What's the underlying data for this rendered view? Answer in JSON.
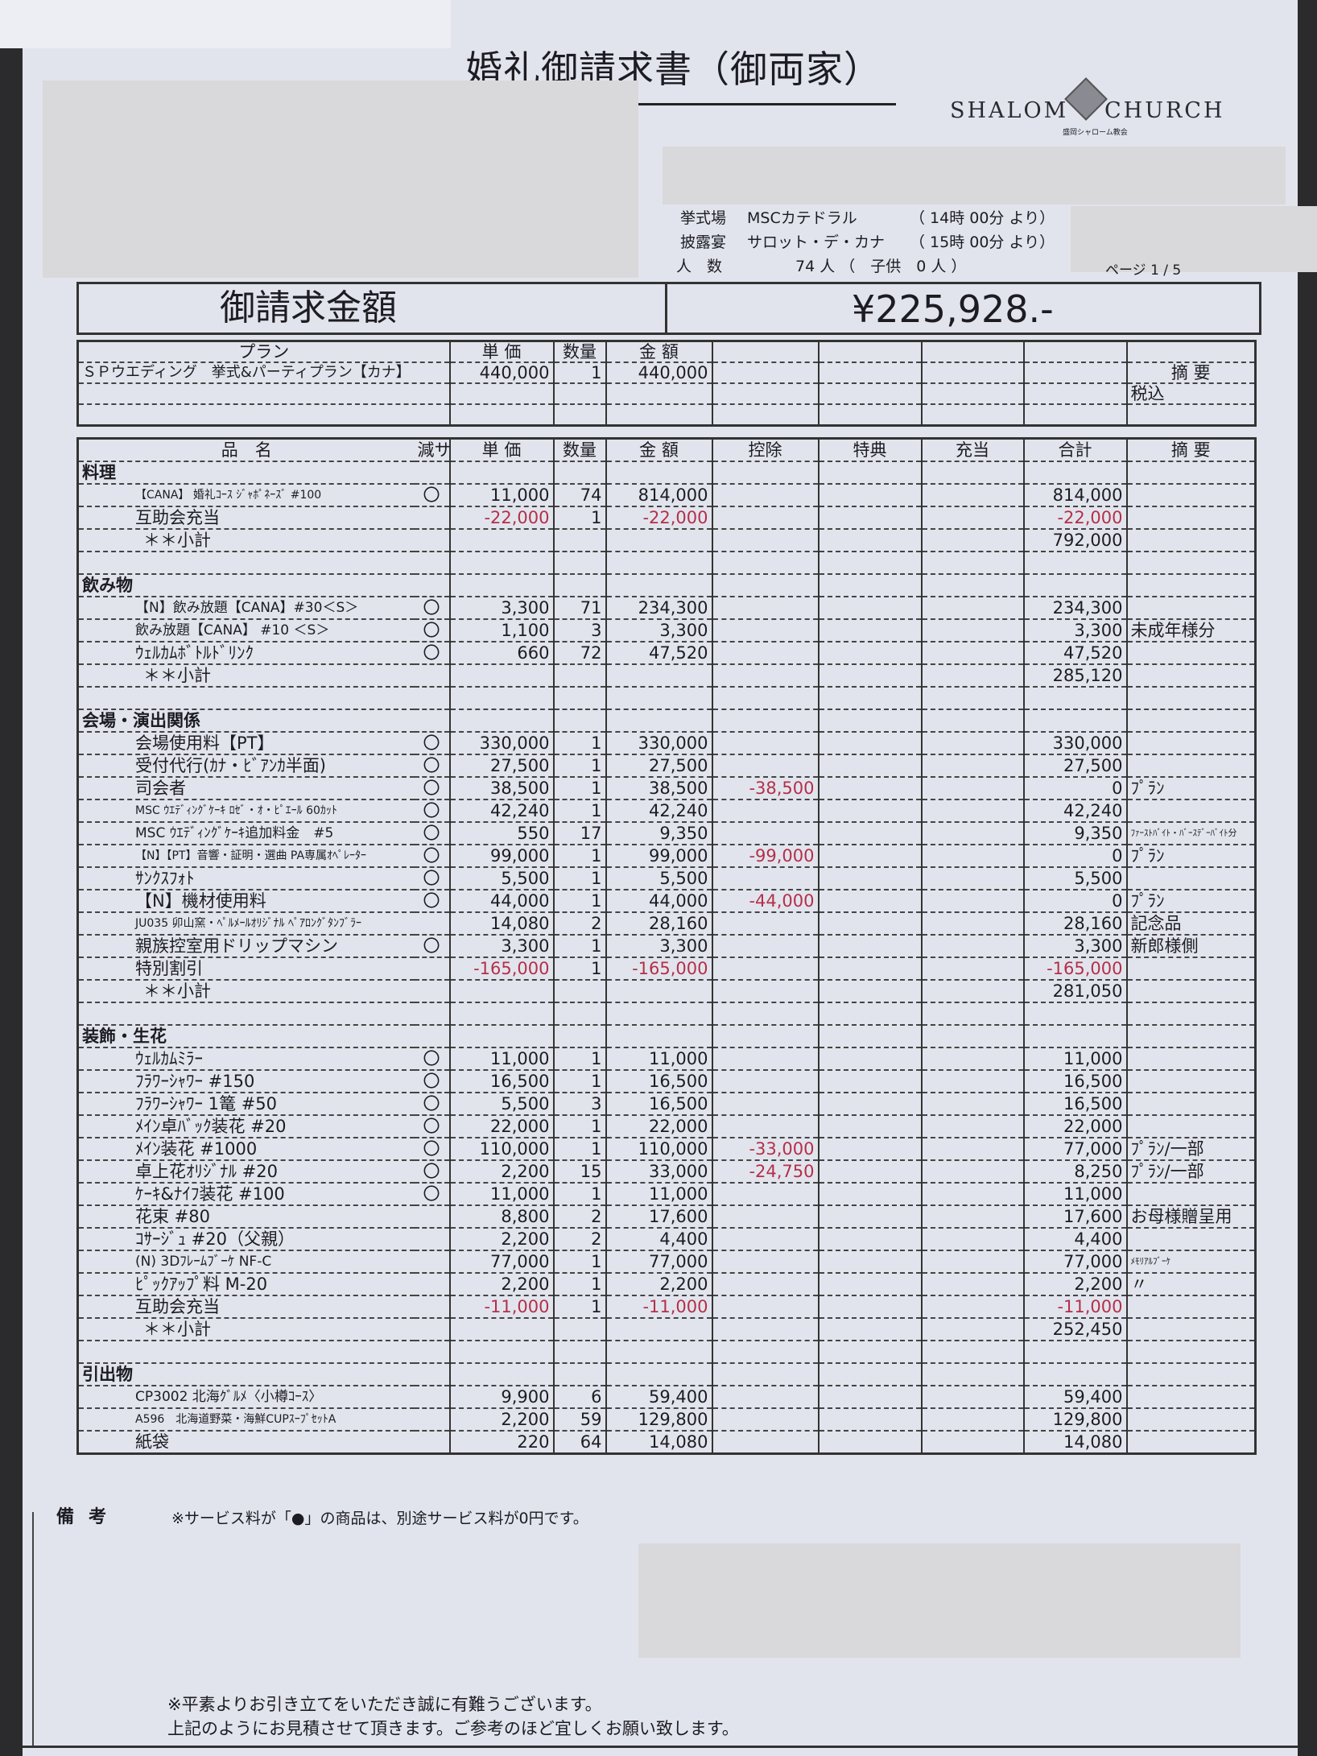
{
  "document": {
    "title": "婚礼御請求書（御両家）",
    "logo_text_left": "SHALOM",
    "logo_text_right": "CHURCH",
    "logo_subtext": "盛岡シャローム教会",
    "logo_monogram": "MS",
    "ceremony_label": "挙式場",
    "ceremony_venue": "MSCカテドラル",
    "ceremony_time": "（ 14時 00分 より）",
    "reception_label": "披露宴",
    "reception_venue": "サロット・デ・カナ",
    "reception_time": "（ 15時 00分 より）",
    "guests_label": "人　数",
    "guests_value": "74 人 （　子供　0 人 ）",
    "page_label": "ページ 1 / 5",
    "amount_label": "御請求金額",
    "amount_value": "¥225,928.-"
  },
  "plan": {
    "headers": {
      "plan": "プラン",
      "price": "単 価",
      "qty": "数量",
      "amount": "金 額",
      "note": "摘 要"
    },
    "name": "ＳＰウエディング　挙式&パーティプラン【カナ】",
    "price": "440,000",
    "qty": "1",
    "amount": "440,000",
    "note": "税込"
  },
  "table": {
    "headers": {
      "name": "品　名",
      "mark": "減サ",
      "price": "単 価",
      "qty": "数量",
      "amount": "金 額",
      "deduction": "控除",
      "benefit": "特典",
      "allocation": "充当",
      "total": "合計",
      "note": "摘 要"
    },
    "sections": [
      {
        "title": "料理",
        "subtotal_label": "＊＊小計",
        "subtotal": "792,000",
        "items": [
          {
            "name": "【CANA】 婚礼ｺｰｽ ｼﾞｬﾎﾟﾈｰｽﾞ #100",
            "mark": "〇",
            "price": "11,000",
            "qty": "74",
            "amount": "814,000",
            "deduction": "",
            "total": "814,000",
            "note": ""
          },
          {
            "name": "互助会充当",
            "mark": "",
            "price": "-22,000",
            "qty": "1",
            "amount": "-22,000",
            "deduction": "",
            "total": "-22,000",
            "note": ""
          }
        ]
      },
      {
        "title": "飲み物",
        "subtotal_label": "＊＊小計",
        "subtotal": "285,120",
        "items": [
          {
            "name": "【N】飲み放題【CANA】#30＜S＞",
            "mark": "〇",
            "price": "3,300",
            "qty": "71",
            "amount": "234,300",
            "deduction": "",
            "total": "234,300",
            "note": ""
          },
          {
            "name": "飲み放題【CANA】 #10 ＜S＞",
            "mark": "〇",
            "price": "1,100",
            "qty": "3",
            "amount": "3,300",
            "deduction": "",
            "total": "3,300",
            "note": "未成年様分"
          },
          {
            "name": "ｳｪﾙｶﾑﾎﾞﾄﾙﾄﾞﾘﾝｸ",
            "mark": "〇",
            "price": "660",
            "qty": "72",
            "amount": "47,520",
            "deduction": "",
            "total": "47,520",
            "note": ""
          }
        ]
      },
      {
        "title": "会場・演出関係",
        "subtotal_label": "＊＊小計",
        "subtotal": "281,050",
        "items": [
          {
            "name": "会場使用料【PT】",
            "mark": "〇",
            "price": "330,000",
            "qty": "1",
            "amount": "330,000",
            "deduction": "",
            "total": "330,000",
            "note": ""
          },
          {
            "name": "受付代行(ｶﾅ・ﾋﾞｱﾝｶ半面)",
            "mark": "〇",
            "price": "27,500",
            "qty": "1",
            "amount": "27,500",
            "deduction": "",
            "total": "27,500",
            "note": ""
          },
          {
            "name": "司会者",
            "mark": "〇",
            "price": "38,500",
            "qty": "1",
            "amount": "38,500",
            "deduction": "-38,500",
            "total": "0",
            "note": "ﾌﾟﾗﾝ"
          },
          {
            "name": "MSC ｳｴﾃﾞｨﾝｸﾞｹｰｷ ﾛｾﾞ・ｵ・ﾋﾟｴｰﾙ 60ｶｯﾄ",
            "mark": "〇",
            "price": "42,240",
            "qty": "1",
            "amount": "42,240",
            "deduction": "",
            "total": "42,240",
            "note": ""
          },
          {
            "name": "MSC ｳｴﾃﾞｨﾝｸﾞｹｰｷ追加料金　#5",
            "mark": "〇",
            "price": "550",
            "qty": "17",
            "amount": "9,350",
            "deduction": "",
            "total": "9,350",
            "note": "ﾌｧｰｽﾄﾊﾞｲﾄ・ﾊﾞｰｽﾃﾞｰﾊﾞｲﾄ分"
          },
          {
            "name": "【N】【PT】音響・証明・選曲 PA専属ｵﾍﾟﾚｰﾀｰ",
            "mark": "〇",
            "price": "99,000",
            "qty": "1",
            "amount": "99,000",
            "deduction": "-99,000",
            "total": "0",
            "note": "ﾌﾟﾗﾝ"
          },
          {
            "name": "ｻﾝｸｽﾌｫﾄ",
            "mark": "〇",
            "price": "5,500",
            "qty": "1",
            "amount": "5,500",
            "deduction": "",
            "total": "5,500",
            "note": ""
          },
          {
            "name": "【N】機材使用料",
            "mark": "〇",
            "price": "44,000",
            "qty": "1",
            "amount": "44,000",
            "deduction": "-44,000",
            "total": "0",
            "note": "ﾌﾟﾗﾝ"
          },
          {
            "name": "JU035 卯山窯・ﾍﾟﾙﾒｰﾙｵﾘｼﾞﾅﾙ ﾍﾟｱﾛﾝｸﾞﾀﾝﾌﾞﾗｰ",
            "mark": "",
            "price": "14,080",
            "qty": "2",
            "amount": "28,160",
            "deduction": "",
            "total": "28,160",
            "note": "記念品"
          },
          {
            "name": "親族控室用ドリップマシン",
            "mark": "〇",
            "price": "3,300",
            "qty": "1",
            "amount": "3,300",
            "deduction": "",
            "total": "3,300",
            "note": "新郎様側"
          },
          {
            "name": "特別割引",
            "mark": "",
            "price": "-165,000",
            "qty": "1",
            "amount": "-165,000",
            "deduction": "",
            "total": "-165,000",
            "note": ""
          }
        ]
      },
      {
        "title": "装飾・生花",
        "subtotal_label": "＊＊小計",
        "subtotal": "252,450",
        "items": [
          {
            "name": "ｳｪﾙｶﾑﾐﾗｰ",
            "mark": "〇",
            "price": "11,000",
            "qty": "1",
            "amount": "11,000",
            "deduction": "",
            "total": "11,000",
            "note": ""
          },
          {
            "name": "ﾌﾗﾜｰｼｬﾜｰ #150",
            "mark": "〇",
            "price": "16,500",
            "qty": "1",
            "amount": "16,500",
            "deduction": "",
            "total": "16,500",
            "note": ""
          },
          {
            "name": "ﾌﾗﾜｰｼｬﾜｰ 1篭 #50",
            "mark": "〇",
            "price": "5,500",
            "qty": "3",
            "amount": "16,500",
            "deduction": "",
            "total": "16,500",
            "note": ""
          },
          {
            "name": "ﾒｲﾝ卓ﾊﾞｯｸ装花 #20",
            "mark": "〇",
            "price": "22,000",
            "qty": "1",
            "amount": "22,000",
            "deduction": "",
            "total": "22,000",
            "note": ""
          },
          {
            "name": "ﾒｲﾝ装花 #1000",
            "mark": "〇",
            "price": "110,000",
            "qty": "1",
            "amount": "110,000",
            "deduction": "-33,000",
            "total": "77,000",
            "note": "ﾌﾟﾗﾝ/一部"
          },
          {
            "name": "卓上花ｵﾘｼﾞﾅﾙ #20",
            "mark": "〇",
            "price": "2,200",
            "qty": "15",
            "amount": "33,000",
            "deduction": "-24,750",
            "total": "8,250",
            "note": "ﾌﾟﾗﾝ/一部"
          },
          {
            "name": "ｹｰｷ&ﾅｲﾌ装花 #100",
            "mark": "〇",
            "price": "11,000",
            "qty": "1",
            "amount": "11,000",
            "deduction": "",
            "total": "11,000",
            "note": ""
          },
          {
            "name": "花束 #80",
            "mark": "",
            "price": "8,800",
            "qty": "2",
            "amount": "17,600",
            "deduction": "",
            "total": "17,600",
            "note": "お母様贈呈用"
          },
          {
            "name": "ｺｻｰｼﾞｭ #20（父親）",
            "mark": "",
            "price": "2,200",
            "qty": "2",
            "amount": "4,400",
            "deduction": "",
            "total": "4,400",
            "note": ""
          },
          {
            "name": "(N) 3Dﾌﾚｰﾑﾌﾞｰｹ NF-C",
            "mark": "",
            "price": "77,000",
            "qty": "1",
            "amount": "77,000",
            "deduction": "",
            "total": "77,000",
            "note": "ﾒﾓﾘｱﾙﾌﾞｰｹ"
          },
          {
            "name": "ﾋﾟｯｸｱｯﾌﾟ料 M-20",
            "mark": "",
            "price": "2,200",
            "qty": "1",
            "amount": "2,200",
            "deduction": "",
            "total": "2,200",
            "note": "〃"
          },
          {
            "name": "互助会充当",
            "mark": "",
            "price": "-11,000",
            "qty": "1",
            "amount": "-11,000",
            "deduction": "",
            "total": "-11,000",
            "note": ""
          }
        ]
      },
      {
        "title": "引出物",
        "subtotal_label": "",
        "subtotal": "",
        "items": [
          {
            "name": "CP3002 北海ｸﾞﾙﾒ〈小樽ｺｰｽ〉",
            "mark": "",
            "price": "9,900",
            "qty": "6",
            "amount": "59,400",
            "deduction": "",
            "total": "59,400",
            "note": ""
          },
          {
            "name": "A596　北海道野菜・海鮮CUPｽｰﾌﾟｾｯﾄA",
            "mark": "",
            "price": "2,200",
            "qty": "59",
            "amount": "129,800",
            "deduction": "",
            "total": "129,800",
            "note": ""
          },
          {
            "name": "紙袋",
            "mark": "",
            "price": "220",
            "qty": "64",
            "amount": "14,080",
            "deduction": "",
            "total": "14,080",
            "note": ""
          }
        ]
      }
    ]
  },
  "remarks": {
    "label": "備考",
    "note": "※サービス料が「●」の商品は、別途サービス料が0円です。"
  },
  "footer": {
    "line1": "※平素よりお引き立てをいただき誠に有難うございます。",
    "line2": "上記のようにお見積させて頂きます。ご参考のほど宜しくお願い致します。"
  },
  "colors": {
    "paper": "#e2e4ed",
    "negative": "#b33048",
    "redaction": "#d9d9db"
  }
}
